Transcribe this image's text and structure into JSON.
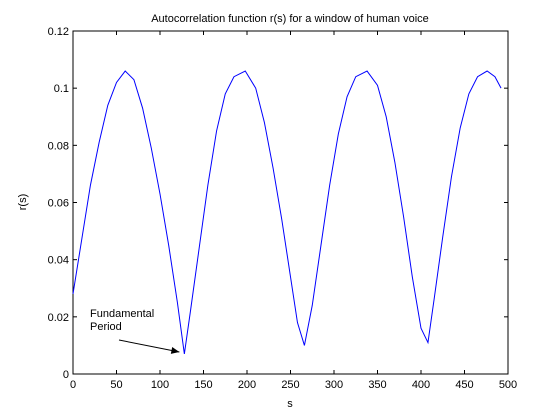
{
  "chart_data": {
    "type": "line",
    "title": "Autocorrelation function r(s) for a window of human voice",
    "xlabel": "s",
    "ylabel": "r(s)",
    "xlim": [
      0,
      500
    ],
    "ylim": [
      0,
      0.12
    ],
    "xticks": [
      0,
      50,
      100,
      150,
      200,
      250,
      300,
      350,
      400,
      450,
      500
    ],
    "yticks": [
      0,
      0.02,
      0.04,
      0.06,
      0.08,
      0.1,
      0.12
    ],
    "xtick_labels": [
      "0",
      "50",
      "100",
      "150",
      "200",
      "250",
      "300",
      "350",
      "400",
      "450",
      "500"
    ],
    "ytick_labels": [
      "0",
      "0.02",
      "0.04",
      "0.06",
      "0.08",
      "0.1",
      "0.12"
    ],
    "grid": false,
    "series": [
      {
        "color": "#0000ff",
        "x": [
          0,
          10,
          20,
          30,
          40,
          50,
          60,
          70,
          80,
          90,
          100,
          110,
          120,
          128,
          135,
          145,
          155,
          165,
          175,
          185,
          198,
          210,
          220,
          230,
          240,
          250,
          258,
          266,
          275,
          285,
          295,
          305,
          315,
          325,
          338,
          350,
          360,
          370,
          380,
          390,
          400,
          408,
          415,
          425,
          435,
          445,
          455,
          465,
          476,
          485,
          492
        ],
        "y": [
          0.028,
          0.047,
          0.066,
          0.081,
          0.094,
          0.102,
          0.106,
          0.103,
          0.093,
          0.079,
          0.063,
          0.045,
          0.025,
          0.007,
          0.022,
          0.044,
          0.066,
          0.085,
          0.098,
          0.104,
          0.106,
          0.1,
          0.088,
          0.072,
          0.054,
          0.034,
          0.018,
          0.01,
          0.024,
          0.045,
          0.066,
          0.084,
          0.097,
          0.104,
          0.106,
          0.101,
          0.09,
          0.074,
          0.055,
          0.034,
          0.016,
          0.011,
          0.026,
          0.048,
          0.069,
          0.086,
          0.098,
          0.104,
          0.106,
          0.104,
          0.1
        ]
      }
    ],
    "annotation": {
      "lines": [
        "Fundamental",
        "Period"
      ],
      "arrow_target": [
        128,
        0.007
      ]
    }
  }
}
